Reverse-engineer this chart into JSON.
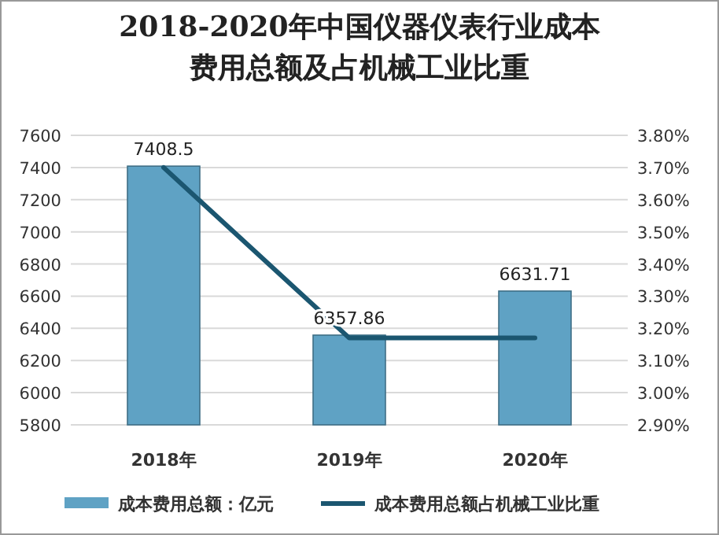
{
  "chart_data": {
    "type": "bar",
    "title": "2018-2020年中国仪器仪表行业成本费用总额及占机械工业比重",
    "categories": [
      "2018年",
      "2019年",
      "2020年"
    ],
    "series": [
      {
        "name": "成本费用总额：亿元",
        "color": "#5fa2c4",
        "values": [
          7408.5,
          6357.86,
          6631.71
        ],
        "value_labels": [
          "7408.5",
          "6357.86",
          "6631.71"
        ]
      },
      {
        "name": "成本费用总额占机械工业比重",
        "type": "line",
        "axis": "y2",
        "color": "#1b5670",
        "values": [
          3.7,
          3.17,
          3.17
        ]
      }
    ],
    "ylim": [
      5800,
      7600
    ],
    "yticks": [
      5800,
      6000,
      6200,
      6400,
      6600,
      6800,
      7000,
      7200,
      7400,
      7600
    ],
    "y2lim": [
      2.9,
      3.8
    ],
    "y2ticks": [
      {
        "value": 2.9,
        "label": "2.90%"
      },
      {
        "value": 3.0,
        "label": "3.00%"
      },
      {
        "value": 3.1,
        "label": "3.10%"
      },
      {
        "value": 3.2,
        "label": "3.20%"
      },
      {
        "value": 3.3,
        "label": "3.30%"
      },
      {
        "value": 3.4,
        "label": "3.40%"
      },
      {
        "value": 3.5,
        "label": "3.50%"
      },
      {
        "value": 3.6,
        "label": "3.60%"
      },
      {
        "value": 3.7,
        "label": "3.70%"
      },
      {
        "value": 3.8,
        "label": "3.80%"
      }
    ],
    "grid": "y",
    "legend": "bottom",
    "marker": "none"
  }
}
